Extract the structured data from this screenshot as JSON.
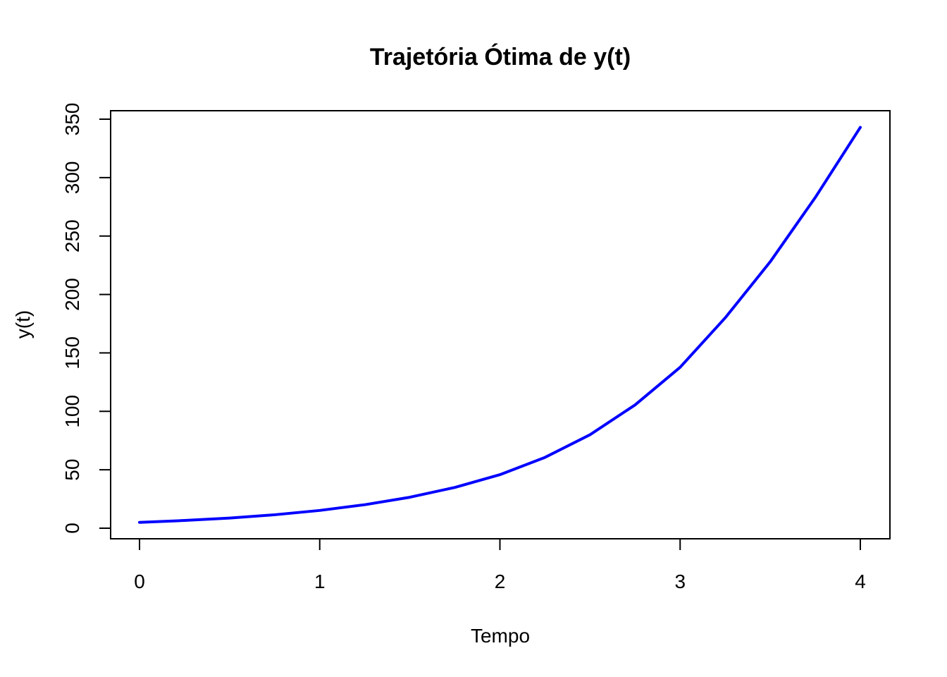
{
  "chart_data": {
    "type": "line",
    "title": "Trajetória Ótima de y(t)",
    "xlabel": "Tempo",
    "ylabel": "y(t)",
    "xlim": [
      0,
      4
    ],
    "ylim": [
      0,
      350
    ],
    "x_ticks": [
      "0",
      "1",
      "2",
      "3",
      "4"
    ],
    "y_ticks": [
      "0",
      "50",
      "100",
      "150",
      "200",
      "250",
      "300",
      "350"
    ],
    "grid": false,
    "legend": "none",
    "series": [
      {
        "color": "#0000ff",
        "x": [
          0,
          0.25,
          0.5,
          0.75,
          1,
          1.25,
          1.5,
          1.75,
          2,
          2.25,
          2.5,
          2.75,
          3,
          3.25,
          3.5,
          3.75,
          4
        ],
        "y": [
          5,
          6.6,
          8.7,
          11.5,
          15.2,
          20.1,
          26.5,
          34.9,
          45.8,
          60.6,
          80,
          105.5,
          137.7,
          180,
          228,
          283,
          343
        ]
      }
    ]
  }
}
